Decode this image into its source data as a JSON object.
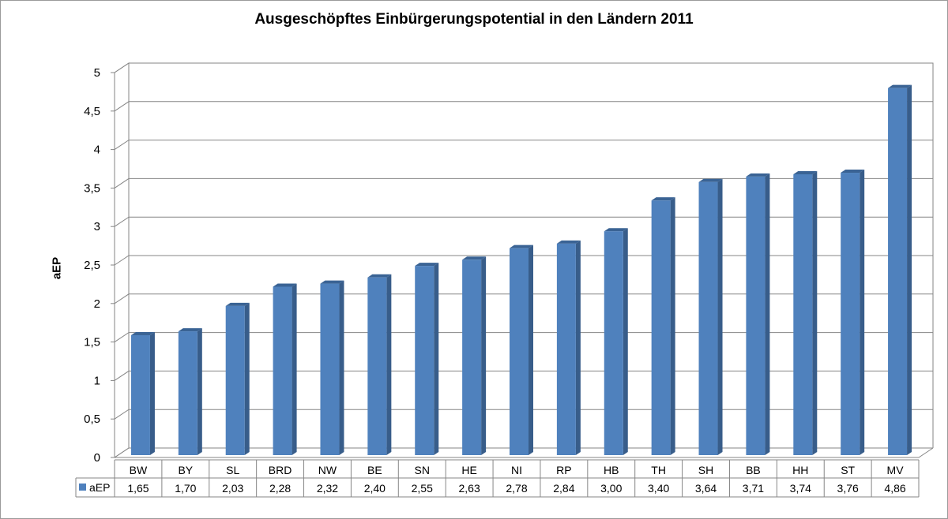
{
  "chart_data": {
    "type": "bar",
    "title": "Ausgeschöpftes Einbürgerungspotential in den Ländern 2011",
    "ylabel": "aEP",
    "xlabel": "",
    "ylim": [
      0,
      5
    ],
    "yticks": [
      "0",
      "0,5",
      "1",
      "1,5",
      "2",
      "2,5",
      "3",
      "3,5",
      "4",
      "4,5",
      "5"
    ],
    "grid": true,
    "legend_position": "data-table-left",
    "categories": [
      "BW",
      "BY",
      "SL",
      "BRD",
      "NW",
      "BE",
      "SN",
      "HE",
      "NI",
      "RP",
      "HB",
      "TH",
      "SH",
      "BB",
      "HH",
      "ST",
      "MV"
    ],
    "series": [
      {
        "name": "aEP",
        "values": [
          1.65,
          1.7,
          2.03,
          2.28,
          2.32,
          2.4,
          2.55,
          2.63,
          2.78,
          2.84,
          3.0,
          3.4,
          3.64,
          3.71,
          3.74,
          3.76,
          4.86
        ],
        "value_labels": [
          "1,65",
          "1,70",
          "2,03",
          "2,28",
          "2,32",
          "2,40",
          "2,55",
          "2,63",
          "2,78",
          "2,84",
          "3,00",
          "3,40",
          "3,64",
          "3,71",
          "3,74",
          "3,76",
          "4,86"
        ]
      }
    ],
    "colors": {
      "bar_front": "#4F81BD",
      "bar_side": "#385D8A",
      "bar_top": "#3A6394",
      "grid": "#868686",
      "wall_edge": "#868686"
    }
  }
}
